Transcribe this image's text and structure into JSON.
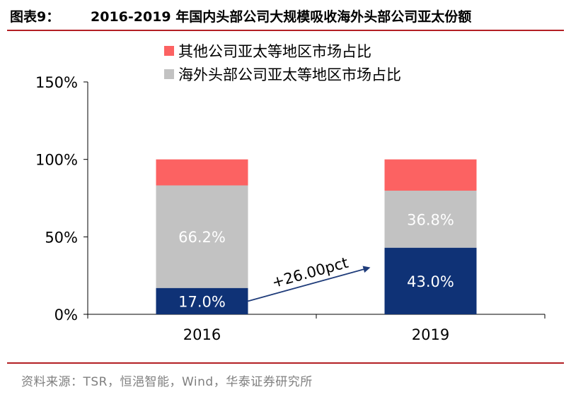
{
  "figure": {
    "label": "图表9：",
    "title": "2016-2019 年国内头部公司大规模吸收海外头部公司亚太份额",
    "source": "资料来源：TSR，恒浥智能，Wind，华泰证券研究所"
  },
  "colors": {
    "overseas_head": "#0f3276",
    "overseas_share": "#c2c2c2",
    "other_share": "#fc6262",
    "title_rule": "#b31f24"
  },
  "chart_data": {
    "type": "bar",
    "stacked": true,
    "categories": [
      "2016",
      "2019"
    ],
    "series": [
      {
        "name": "",
        "color": "#0f3276",
        "values": [
          17.0,
          43.0
        ],
        "labels": [
          "17.0%",
          "43.0%"
        ],
        "label_color": "#ffffff"
      },
      {
        "name": "海外头部公司亚太等地区市场占比",
        "color": "#c2c2c2",
        "values": [
          66.2,
          36.8
        ],
        "labels": [
          "66.2%",
          "36.8%"
        ],
        "label_color": "#ffffff"
      },
      {
        "name": "其他公司亚太等地区市场占比",
        "color": "#fc6262",
        "values": [
          16.8,
          20.2
        ],
        "labels": [
          "",
          ""
        ],
        "label_color": "#ffffff"
      }
    ],
    "y_ticks": [
      "0%",
      "50%",
      "100%",
      "150%"
    ],
    "ylim": [
      0,
      150
    ],
    "legend": {
      "placement": "top"
    },
    "annotation": {
      "text": "+26.00pct",
      "from": [
        "2016",
        8.5
      ],
      "to": [
        "2019",
        30
      ]
    }
  }
}
